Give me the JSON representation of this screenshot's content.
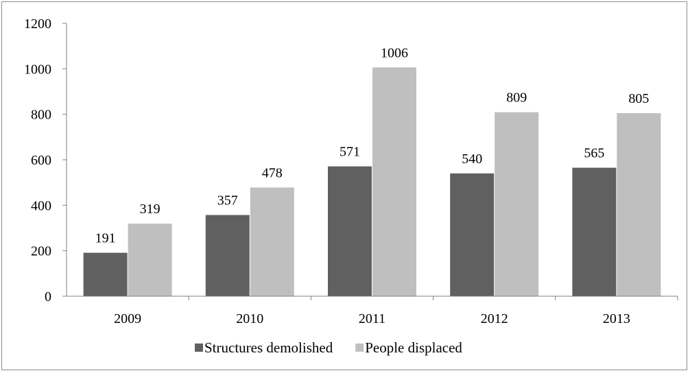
{
  "chart_data": {
    "type": "bar",
    "title": "",
    "xlabel": "",
    "ylabel": "",
    "categories": [
      "2009",
      "2010",
      "2011",
      "2012",
      "2013"
    ],
    "series": [
      {
        "name": "Structures demolished",
        "values": [
          191,
          357,
          571,
          540,
          565
        ],
        "color": "#606060"
      },
      {
        "name": "People displaced",
        "values": [
          319,
          478,
          1006,
          809,
          805
        ],
        "color": "#bfbfbf"
      }
    ],
    "ylim": [
      0,
      1200
    ],
    "yticks": [
      "0",
      "200",
      "400",
      "600",
      "800",
      "1000",
      "1200"
    ],
    "grid": false,
    "legend": "bottom",
    "data_labels": true
  }
}
